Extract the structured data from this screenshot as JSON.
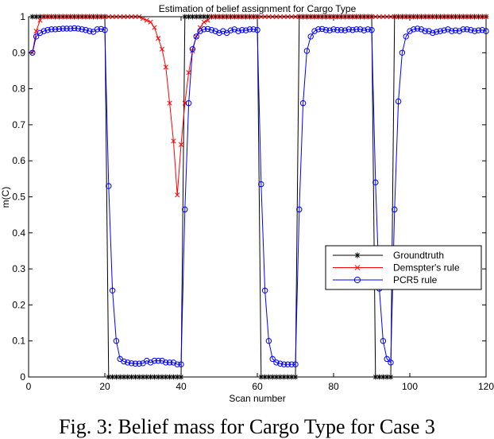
{
  "caption": "Fig. 3: Belief mass for Cargo Type for Case 3",
  "chart_data": {
    "type": "line",
    "title": "Estimation of belief assignment for Cargo Type",
    "xlabel": "Scan number",
    "ylabel": "m(C)",
    "xlim": [
      0,
      120
    ],
    "ylim": [
      0,
      1
    ],
    "xticks": [
      0,
      20,
      40,
      60,
      80,
      100,
      120
    ],
    "yticks": [
      0,
      0.1,
      0.2,
      0.3,
      0.4,
      0.5,
      0.6,
      0.7,
      0.8,
      0.9,
      1
    ],
    "xtick_labels": [
      "0",
      "20",
      "40",
      "60",
      "80",
      "100",
      "120"
    ],
    "ytick_labels": [
      "0",
      "0.1",
      "0.2",
      "0.3",
      "0.4",
      "0.5",
      "0.6",
      "0.7",
      "0.8",
      "0.9",
      "1"
    ],
    "grid": false,
    "legend_position": "lower-right",
    "series": [
      {
        "name": "Groundtruth",
        "color": "#000000",
        "marker": "star",
        "segments": [
          {
            "x_start": 1,
            "x_end": 20,
            "y": 1
          },
          {
            "x_start": 21,
            "x_end": 40,
            "y": 0
          },
          {
            "x_start": 41,
            "x_end": 60,
            "y": 1
          },
          {
            "x_start": 61,
            "x_end": 70,
            "y": 0
          },
          {
            "x_start": 71,
            "x_end": 90,
            "y": 1
          },
          {
            "x_start": 91,
            "x_end": 95,
            "y": 0
          },
          {
            "x_start": 96,
            "x_end": 120,
            "y": 1
          }
        ]
      },
      {
        "name": "Demspter's rule",
        "color": "#ff0000",
        "marker": "x",
        "x": [
          1,
          2,
          3,
          4,
          5,
          6,
          7,
          8,
          9,
          10,
          11,
          12,
          13,
          14,
          15,
          16,
          17,
          18,
          19,
          20,
          21,
          22,
          23,
          24,
          25,
          26,
          27,
          28,
          29,
          30,
          31,
          32,
          33,
          34,
          35,
          36,
          37,
          38,
          39,
          40,
          41,
          42,
          43,
          44,
          45,
          46,
          47,
          48,
          49,
          50,
          51,
          52,
          53,
          54,
          55,
          56,
          57,
          58,
          59,
          60,
          61,
          62,
          63,
          64,
          65,
          66,
          67,
          68,
          69,
          70,
          71,
          72,
          73,
          74,
          75,
          76,
          77,
          78,
          79,
          80,
          81,
          82,
          83,
          84,
          85,
          86,
          87,
          88,
          89,
          90,
          91,
          92,
          93,
          94,
          95,
          96,
          97,
          98,
          99,
          100,
          101,
          102,
          103,
          104,
          105,
          106,
          107,
          108,
          109,
          110,
          111,
          112,
          113,
          114,
          115,
          116,
          117,
          118,
          119,
          120
        ],
        "y": [
          0.9,
          0.96,
          0.99,
          1,
          1,
          1,
          1,
          1,
          1,
          1,
          1,
          1,
          1,
          1,
          1,
          1,
          1,
          1,
          1,
          1,
          1,
          1,
          1,
          1,
          1,
          1,
          1,
          1,
          1,
          0.995,
          0.99,
          0.985,
          0.97,
          0.94,
          0.91,
          0.86,
          0.76,
          0.655,
          0.505,
          0.645,
          0.76,
          0.845,
          0.905,
          0.945,
          0.97,
          0.985,
          0.99,
          1,
          1,
          1,
          1,
          1,
          1,
          1,
          1,
          1,
          1,
          1,
          1,
          1,
          1,
          1,
          1,
          1,
          1,
          1,
          1,
          1,
          1,
          1,
          1,
          1,
          1,
          1,
          1,
          1,
          1,
          1,
          1,
          1,
          1,
          1,
          1,
          1,
          1,
          1,
          1,
          1,
          1,
          1,
          1,
          1,
          1,
          1,
          1,
          1,
          1,
          1,
          1,
          1,
          1,
          1,
          1,
          1,
          1,
          1,
          1,
          1,
          1,
          1,
          1,
          1,
          1,
          1,
          1,
          1,
          1,
          1,
          1,
          1
        ]
      },
      {
        "name": "PCR5 rule",
        "color": "#0000ff",
        "marker": "circle",
        "x": [
          1,
          2,
          3,
          4,
          5,
          6,
          7,
          8,
          9,
          10,
          11,
          12,
          13,
          14,
          15,
          16,
          17,
          18,
          19,
          20,
          21,
          22,
          23,
          24,
          25,
          26,
          27,
          28,
          29,
          30,
          31,
          32,
          33,
          34,
          35,
          36,
          37,
          38,
          39,
          40,
          41,
          42,
          43,
          44,
          45,
          46,
          47,
          48,
          49,
          50,
          51,
          52,
          53,
          54,
          55,
          56,
          57,
          58,
          59,
          60,
          61,
          62,
          63,
          64,
          65,
          66,
          67,
          68,
          69,
          70,
          71,
          72,
          73,
          74,
          75,
          76,
          77,
          78,
          79,
          80,
          81,
          82,
          83,
          84,
          85,
          86,
          87,
          88,
          89,
          90,
          91,
          92,
          93,
          94,
          95,
          96,
          97,
          98,
          99,
          100,
          101,
          102,
          103,
          104,
          105,
          106,
          107,
          108,
          109,
          110,
          111,
          112,
          113,
          114,
          115,
          116,
          117,
          118,
          119,
          120
        ],
        "y": [
          0.9,
          0.945,
          0.955,
          0.96,
          0.963,
          0.965,
          0.965,
          0.966,
          0.967,
          0.967,
          0.967,
          0.968,
          0.967,
          0.965,
          0.963,
          0.96,
          0.958,
          0.965,
          0.966,
          0.963,
          0.53,
          0.24,
          0.1,
          0.05,
          0.043,
          0.04,
          0.038,
          0.037,
          0.037,
          0.038,
          0.045,
          0.04,
          0.045,
          0.045,
          0.045,
          0.04,
          0.04,
          0.04,
          0.035,
          0.035,
          0.465,
          0.76,
          0.91,
          0.945,
          0.96,
          0.965,
          0.966,
          0.963,
          0.96,
          0.955,
          0.96,
          0.955,
          0.962,
          0.965,
          0.96,
          0.963,
          0.962,
          0.965,
          0.965,
          0.963,
          0.535,
          0.24,
          0.1,
          0.05,
          0.04,
          0.037,
          0.035,
          0.035,
          0.035,
          0.035,
          0.465,
          0.76,
          0.905,
          0.945,
          0.96,
          0.965,
          0.966,
          0.963,
          0.962,
          0.965,
          0.963,
          0.963,
          0.962,
          0.965,
          0.963,
          0.965,
          0.965,
          0.962,
          0.965,
          0.963,
          0.54,
          0.245,
          0.1,
          0.05,
          0.04,
          0.465,
          0.765,
          0.9,
          0.945,
          0.96,
          0.965,
          0.967,
          0.965,
          0.96,
          0.96,
          0.955,
          0.958,
          0.96,
          0.962,
          0.965,
          0.96,
          0.962,
          0.96,
          0.965,
          0.965,
          0.963,
          0.96,
          0.962,
          0.963,
          0.96
        ]
      }
    ]
  }
}
